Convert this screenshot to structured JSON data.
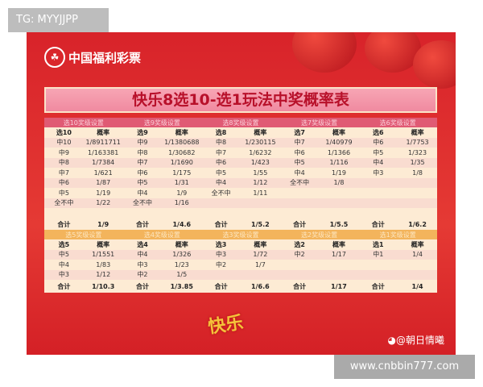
{
  "watermark_top": "TG: MYYJJPP",
  "watermark_bottom": "www.cnbbin777.com",
  "logo_text": "中国福利彩票",
  "title": "快乐8选10-选1玩法中奖概率表",
  "footer_logo": "快乐",
  "weibo": "@朝日情曦",
  "prob_label": "概率",
  "total_label": "合计",
  "top_groups": [
    {
      "header": "选10奖级设置",
      "pick": "选10",
      "rows": [
        [
          "中10",
          "1/8911711"
        ],
        [
          "中9",
          "1/163381"
        ],
        [
          "中8",
          "1/7384"
        ],
        [
          "中7",
          "1/621"
        ],
        [
          "中6",
          "1/87"
        ],
        [
          "中5",
          "1/19"
        ],
        [
          "全不中",
          "1/22"
        ]
      ],
      "total": "1/9"
    },
    {
      "header": "选9奖级设置",
      "pick": "选9",
      "rows": [
        [
          "中9",
          "1/1380688"
        ],
        [
          "中8",
          "1/30682"
        ],
        [
          "中7",
          "1/1690"
        ],
        [
          "中6",
          "1/175"
        ],
        [
          "中5",
          "1/31"
        ],
        [
          "中4",
          "1/9"
        ],
        [
          "全不中",
          "1/16"
        ]
      ],
      "total": "1/4.6"
    },
    {
      "header": "选8奖级设置",
      "pick": "选8",
      "rows": [
        [
          "中8",
          "1/230115"
        ],
        [
          "中7",
          "1/6232"
        ],
        [
          "中6",
          "1/423"
        ],
        [
          "中5",
          "1/55"
        ],
        [
          "中4",
          "1/12"
        ],
        [
          "全不中",
          "1/11"
        ]
      ],
      "total": "1/5.2"
    },
    {
      "header": "选7奖级设置",
      "pick": "选7",
      "rows": [
        [
          "中7",
          "1/40979"
        ],
        [
          "中6",
          "1/1366"
        ],
        [
          "中5",
          "1/116"
        ],
        [
          "中4",
          "1/19"
        ],
        [
          "全不中",
          "1/8"
        ]
      ],
      "total": "1/5.5"
    },
    {
      "header": "选6奖级设置",
      "pick": "选6",
      "rows": [
        [
          "中6",
          "1/7753"
        ],
        [
          "中5",
          "1/323"
        ],
        [
          "中4",
          "1/35"
        ],
        [
          "中3",
          "1/8"
        ]
      ],
      "total": "1/6.2"
    }
  ],
  "bottom_groups": [
    {
      "header": "选5奖级设置",
      "pick": "选5",
      "rows": [
        [
          "中5",
          "1/1551"
        ],
        [
          "中4",
          "1/83"
        ],
        [
          "中3",
          "1/12"
        ]
      ],
      "total": "1/10.3"
    },
    {
      "header": "选4奖级设置",
      "pick": "选4",
      "rows": [
        [
          "中4",
          "1/326"
        ],
        [
          "中3",
          "1/23"
        ],
        [
          "中2",
          "1/5"
        ]
      ],
      "total": "1/3.85"
    },
    {
      "header": "选3奖级设置",
      "pick": "选3",
      "rows": [
        [
          "中3",
          "1/72"
        ],
        [
          "中2",
          "1/7"
        ]
      ],
      "total": "1/6.6"
    },
    {
      "header": "选2奖级设置",
      "pick": "选2",
      "rows": [
        [
          "中2",
          "1/17"
        ]
      ],
      "total": "1/17"
    },
    {
      "header": "选1奖级设置",
      "pick": "选1",
      "rows": [
        [
          "中1",
          "1/4"
        ]
      ],
      "total": "1/4"
    }
  ]
}
